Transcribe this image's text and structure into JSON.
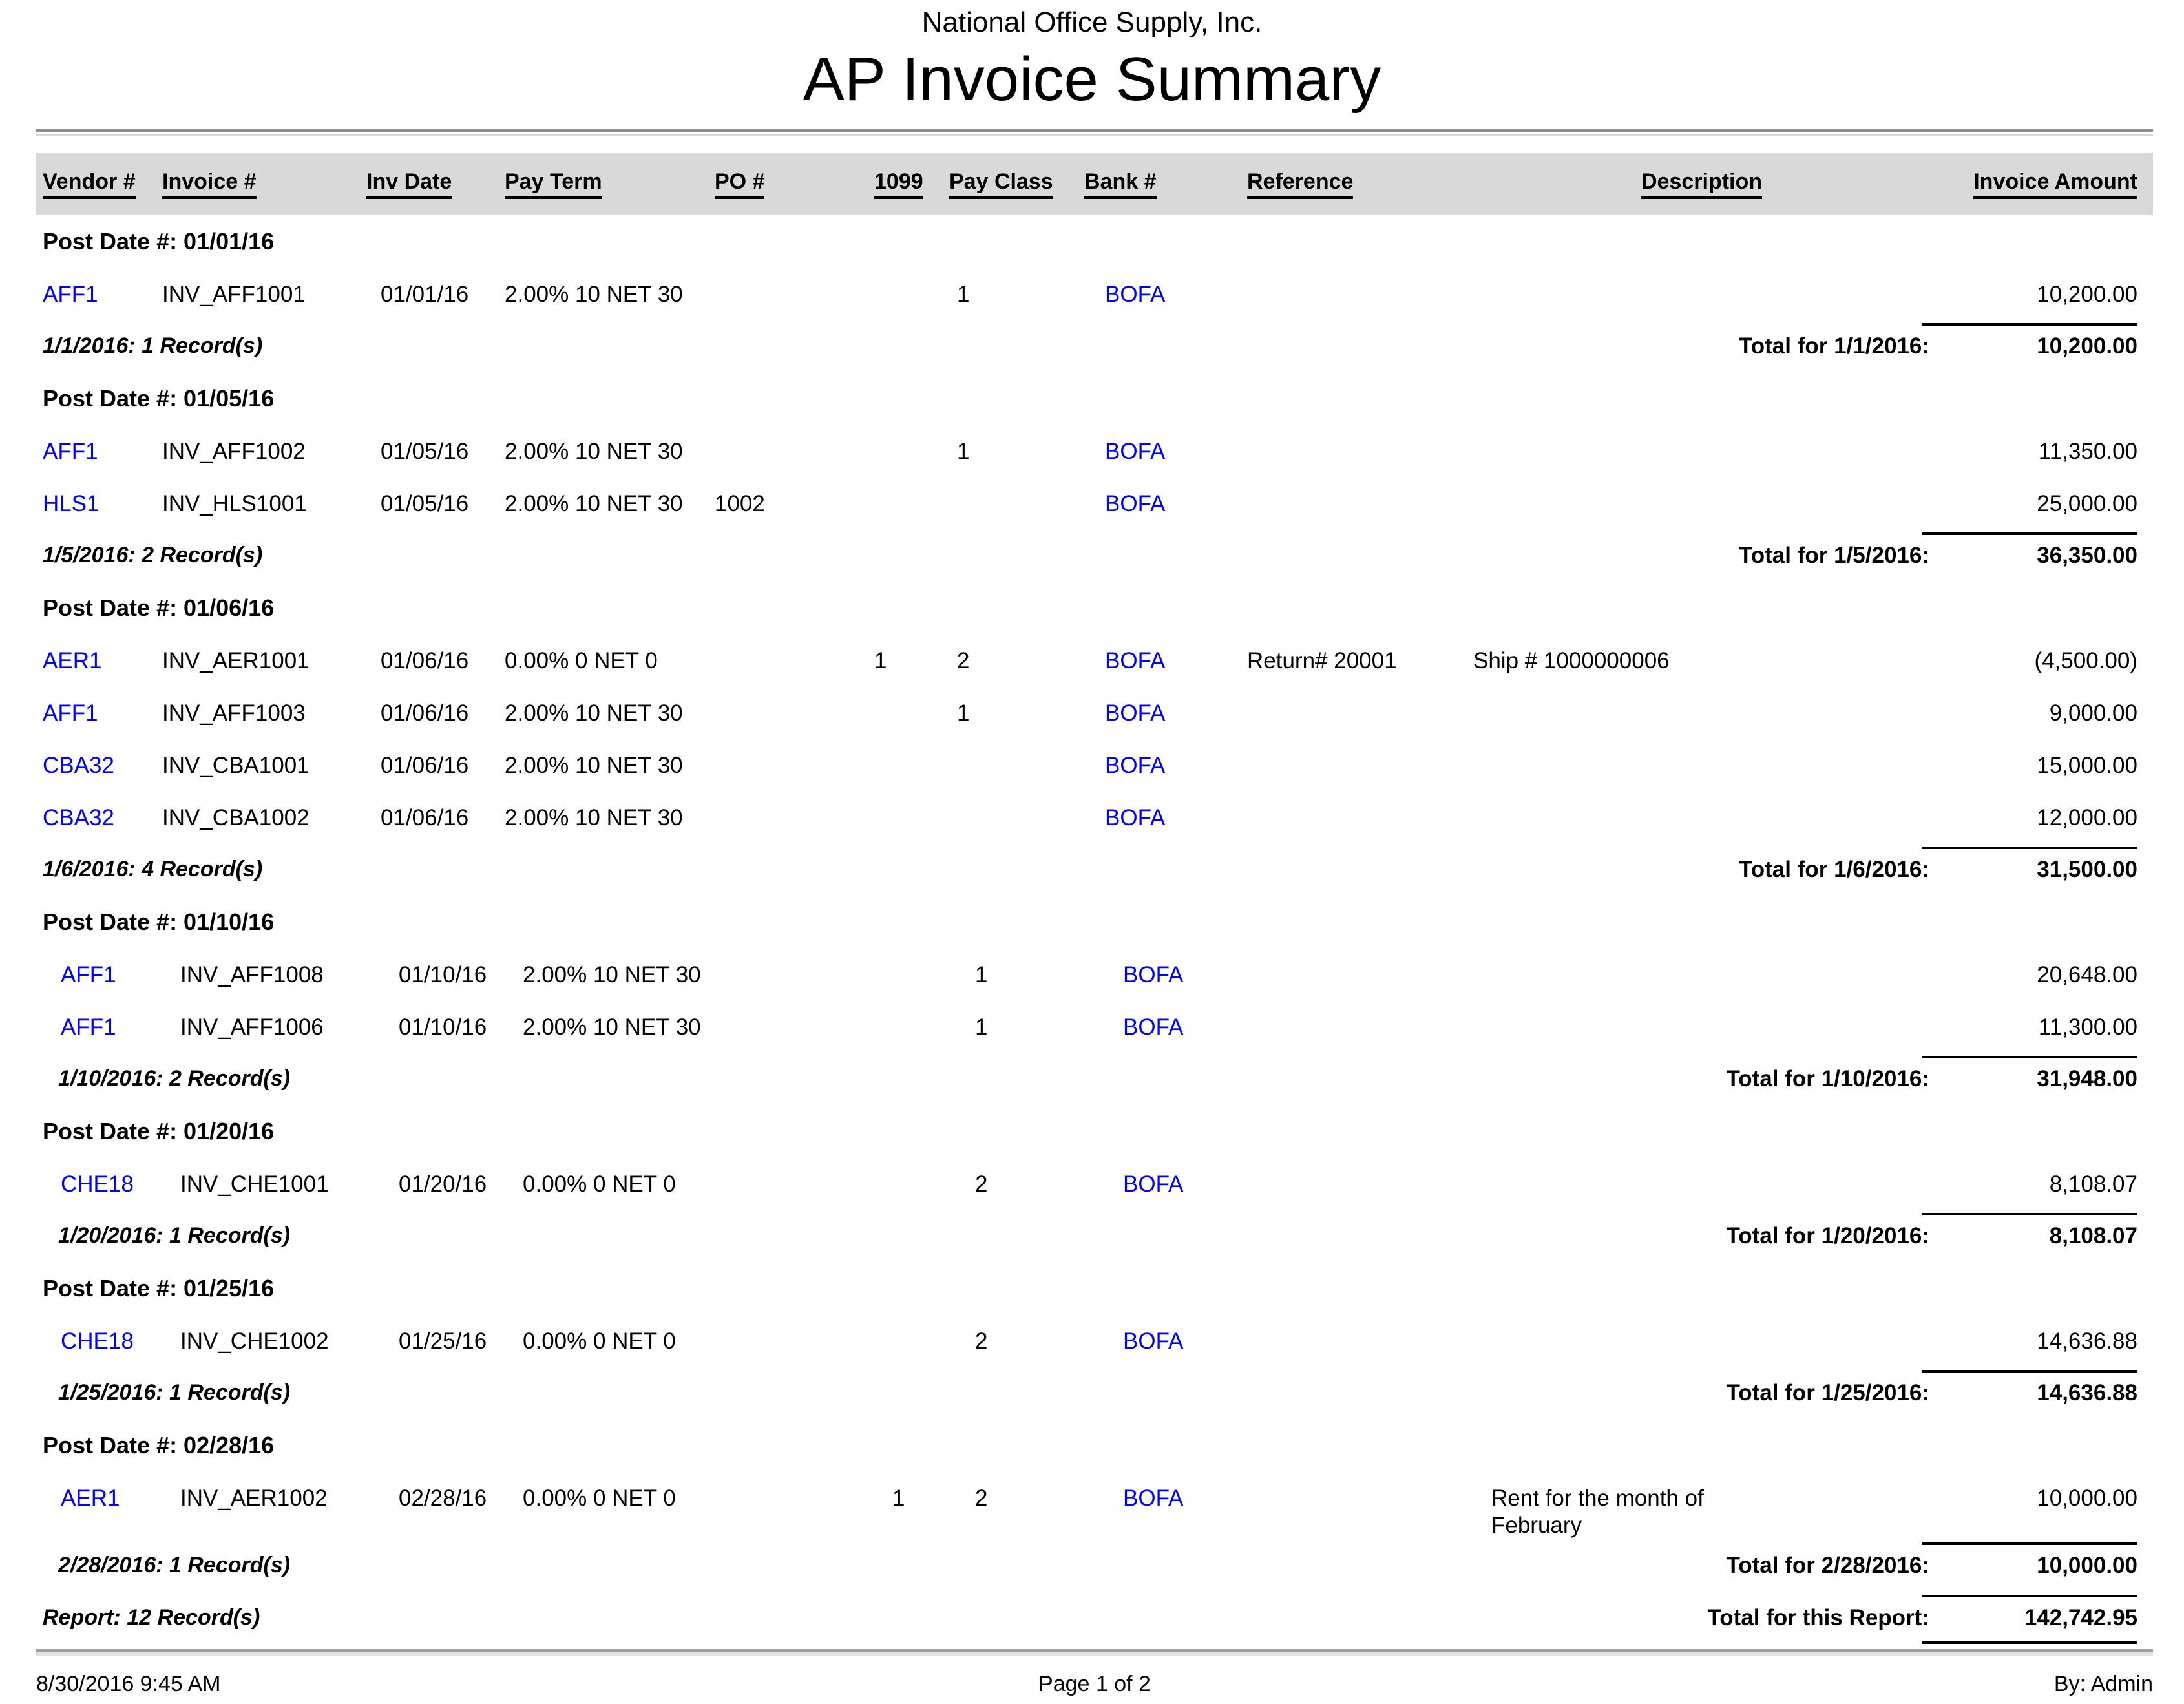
{
  "report": {
    "company": "National Office Supply, Inc.",
    "title": "AP Invoice Summary",
    "colors": {
      "link_blue": "#0000ff",
      "header_band": "#d9d9d9",
      "separator_gray": "#9b9b9b"
    },
    "columns": [
      {
        "key": "vendor",
        "label": "Vendor #",
        "align": "left"
      },
      {
        "key": "invoice",
        "label": "Invoice #",
        "align": "left"
      },
      {
        "key": "inv-date",
        "label": "Inv Date",
        "align": "left"
      },
      {
        "key": "pay-term",
        "label": "Pay Term",
        "align": "left"
      },
      {
        "key": "po",
        "label": "PO #",
        "align": "left"
      },
      {
        "key": "1099",
        "label": "1099",
        "align": "left"
      },
      {
        "key": "pay-class",
        "label": "Pay Class",
        "align": "left"
      },
      {
        "key": "bank",
        "label": "Bank #",
        "align": "left"
      },
      {
        "key": "reference",
        "label": "Reference",
        "align": "left"
      },
      {
        "key": "description",
        "label": "Description",
        "align": "center"
      },
      {
        "key": "amount",
        "label": "Invoice Amount",
        "align": "right"
      }
    ],
    "sections": [
      {
        "post_date_label": "Post Date #: 01/01/16",
        "indent": false,
        "rows": [
          {
            "vendor": "AFF1",
            "invoice": "INV_AFF1001",
            "inv_date": "01/01/16",
            "pay_term": "2.00% 10 NET 30",
            "po": "",
            "f1099": "",
            "pay_class": "1",
            "bank": "BOFA",
            "reference": "",
            "description": "",
            "amount": "10,200.00"
          }
        ],
        "records_label": "1/1/2016: 1 Record(s)",
        "total_label": "Total for 1/1/2016:",
        "total": "10,200.00"
      },
      {
        "post_date_label": "Post Date #: 01/05/16",
        "indent": false,
        "rows": [
          {
            "vendor": "AFF1",
            "invoice": "INV_AFF1002",
            "inv_date": "01/05/16",
            "pay_term": "2.00% 10 NET 30",
            "po": "",
            "f1099": "",
            "pay_class": "1",
            "bank": "BOFA",
            "reference": "",
            "description": "",
            "amount": "11,350.00"
          },
          {
            "vendor": "HLS1",
            "invoice": "INV_HLS1001",
            "inv_date": "01/05/16",
            "pay_term": "2.00% 10 NET 30",
            "po": "1002",
            "f1099": "",
            "pay_class": "",
            "bank": "BOFA",
            "reference": "",
            "description": "",
            "amount": "25,000.00"
          }
        ],
        "records_label": "1/5/2016: 2 Record(s)",
        "total_label": "Total for 1/5/2016:",
        "total": "36,350.00"
      },
      {
        "post_date_label": "Post Date #: 01/06/16",
        "indent": false,
        "rows": [
          {
            "vendor": "AER1",
            "invoice": "INV_AER1001",
            "inv_date": "01/06/16",
            "pay_term": "0.00% 0 NET 0",
            "po": "",
            "f1099": "1",
            "pay_class": "2",
            "bank": "BOFA",
            "reference": "Return# 20001",
            "description": "Ship # 1000000006",
            "amount": "(4,500.00)"
          },
          {
            "vendor": "AFF1",
            "invoice": "INV_AFF1003",
            "inv_date": "01/06/16",
            "pay_term": "2.00% 10 NET 30",
            "po": "",
            "f1099": "",
            "pay_class": "1",
            "bank": "BOFA",
            "reference": "",
            "description": "",
            "amount": "9,000.00"
          },
          {
            "vendor": "CBA32",
            "invoice": "INV_CBA1001",
            "inv_date": "01/06/16",
            "pay_term": "2.00% 10 NET 30",
            "po": "",
            "f1099": "",
            "pay_class": "",
            "bank": "BOFA",
            "reference": "",
            "description": "",
            "amount": "15,000.00"
          },
          {
            "vendor": "CBA32",
            "invoice": "INV_CBA1002",
            "inv_date": "01/06/16",
            "pay_term": "2.00% 10 NET 30",
            "po": "",
            "f1099": "",
            "pay_class": "",
            "bank": "BOFA",
            "reference": "",
            "description": "",
            "amount": "12,000.00"
          }
        ],
        "records_label": "1/6/2016: 4 Record(s)",
        "total_label": "Total for 1/6/2016:",
        "total": "31,500.00"
      },
      {
        "post_date_label": "Post Date #: 01/10/16",
        "indent": true,
        "rows": [
          {
            "vendor": "AFF1",
            "invoice": "INV_AFF1008",
            "inv_date": "01/10/16",
            "pay_term": "2.00% 10 NET 30",
            "po": "",
            "f1099": "",
            "pay_class": "1",
            "bank": "BOFA",
            "reference": "",
            "description": "",
            "amount": "20,648.00"
          },
          {
            "vendor": "AFF1",
            "invoice": "INV_AFF1006",
            "inv_date": "01/10/16",
            "pay_term": "2.00% 10 NET 30",
            "po": "",
            "f1099": "",
            "pay_class": "1",
            "bank": "BOFA",
            "reference": "",
            "description": "",
            "amount": "11,300.00"
          }
        ],
        "records_label": "1/10/2016: 2 Record(s)",
        "total_label": "Total for 1/10/2016:",
        "total": "31,948.00"
      },
      {
        "post_date_label": "Post Date #: 01/20/16",
        "indent": true,
        "rows": [
          {
            "vendor": "CHE18",
            "invoice": "INV_CHE1001",
            "inv_date": "01/20/16",
            "pay_term": "0.00% 0 NET 0",
            "po": "",
            "f1099": "",
            "pay_class": "2",
            "bank": "BOFA",
            "reference": "",
            "description": "",
            "amount": "8,108.07"
          }
        ],
        "records_label": "1/20/2016: 1 Record(s)",
        "total_label": "Total for 1/20/2016:",
        "total": "8,108.07"
      },
      {
        "post_date_label": "Post Date #: 01/25/16",
        "indent": true,
        "rows": [
          {
            "vendor": "CHE18",
            "invoice": "INV_CHE1002",
            "inv_date": "01/25/16",
            "pay_term": "0.00% 0 NET 0",
            "po": "",
            "f1099": "",
            "pay_class": "2",
            "bank": "BOFA",
            "reference": "",
            "description": "",
            "amount": "14,636.88"
          }
        ],
        "records_label": "1/25/2016: 1 Record(s)",
        "total_label": "Total for 1/25/2016:",
        "total": "14,636.88"
      },
      {
        "post_date_label": "Post Date #: 02/28/16",
        "indent": true,
        "rows": [
          {
            "vendor": "AER1",
            "invoice": "INV_AER1002",
            "inv_date": "02/28/16",
            "pay_term": "0.00% 0 NET 0",
            "po": "",
            "f1099": "1",
            "pay_class": "2",
            "bank": "BOFA",
            "reference": "",
            "description": "Rent for the month of February",
            "amount": "10,000.00"
          }
        ],
        "records_label": "2/28/2016: 1 Record(s)",
        "total_label": "Total for 2/28/2016:",
        "total": "10,000.00"
      }
    ],
    "report_summary": {
      "records_label": "Report: 12 Record(s)",
      "total_label": "Total for this Report:",
      "total": "142,742.95"
    },
    "footer": {
      "datetime": "8/30/2016 9:45 AM",
      "page": "Page 1 of 2",
      "by": "By: Admin"
    }
  }
}
